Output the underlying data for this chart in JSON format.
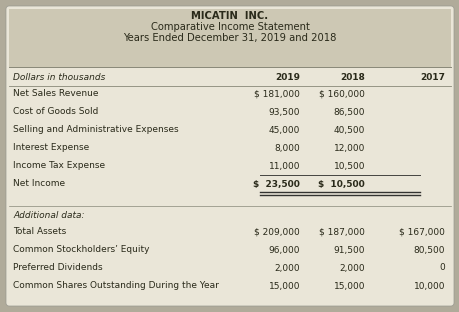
{
  "title_line1": "MICATIN  INC.",
  "title_line2": "Comparative Income Statement",
  "title_line3": "Years Ended December 31, 2019 and 2018",
  "header_bg": "#cdc8b4",
  "row_bg": "#eae6d8",
  "outer_bg": "#b0ab9a",
  "col_headers": [
    "2019",
    "2018",
    "2017"
  ],
  "italic_header": "Dollars in thousands",
  "income_rows": [
    [
      "Net Sales Revenue",
      "$ 181,000",
      "$ 160,000",
      ""
    ],
    [
      "Cost of Goods Sold",
      "93,500",
      "86,500",
      ""
    ],
    [
      "Selling and Administrative Expenses",
      "45,000",
      "40,500",
      ""
    ],
    [
      "Interest Expense",
      "8,000",
      "12,000",
      ""
    ],
    [
      "Income Tax Expense",
      "11,000",
      "10,500",
      ""
    ],
    [
      "Net Income",
      "$  23,500",
      "$  10,500",
      ""
    ]
  ],
  "net_income_row_idx": 5,
  "additional_label": "Additional data:",
  "additional_rows": [
    [
      "Total Assets",
      "$ 209,000",
      "$ 187,000",
      "$ 167,000"
    ],
    [
      "Common Stockholders’ Equity",
      "96,000",
      "91,500",
      "80,500"
    ],
    [
      "Preferred Dividends",
      "2,000",
      "2,000",
      "0"
    ],
    [
      "Common Shares Outstanding During the Year",
      "15,000",
      "15,000",
      "10,000"
    ]
  ],
  "font_size": 6.5,
  "title_font_size": 7.2
}
